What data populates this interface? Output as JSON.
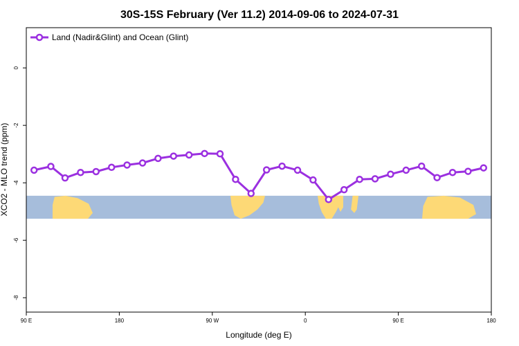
{
  "chart_data": {
    "type": "line",
    "title": "30S-15S February (Ver 11.2)   2014-09-06 to 2024-07-31",
    "xlabel": "Longitude (deg E)",
    "ylabel": "XCO2 - MLO trend (ppm)",
    "xlim": [
      90,
      450
    ],
    "ylim": [
      -8.5,
      1.4
    ],
    "x_ticks": [
      {
        "value": 90,
        "label": "90 E"
      },
      {
        "value": 162,
        "label": "180"
      },
      {
        "value": 234,
        "label": "90 W"
      },
      {
        "value": 306,
        "label": "0"
      },
      {
        "value": 378,
        "label": "90 E"
      },
      {
        "value": 450,
        "label": "180"
      }
    ],
    "y_ticks": [
      {
        "value": 0,
        "label": "0"
      },
      {
        "value": -2,
        "label": "-2"
      },
      {
        "value": -4,
        "label": "-4"
      },
      {
        "value": -6,
        "label": "-6"
      },
      {
        "value": -8,
        "label": "-8"
      }
    ],
    "legend": {
      "position": "top-left"
    },
    "land_band": {
      "y_top": -4.45,
      "y_bottom": -5.25,
      "ocean_color": "#a6bddb",
      "land_color": "#fdd976"
    },
    "series": [
      {
        "name": "Land (Nadir&Glint) and Ocean (Glint)",
        "color": "#9b30e0",
        "x": [
          96,
          109,
          120,
          132,
          144,
          156,
          168,
          180,
          192,
          204,
          216,
          228,
          240,
          252,
          264,
          276,
          288,
          300,
          312,
          324,
          336,
          348,
          360,
          372,
          384,
          396,
          408,
          420,
          432,
          444
        ],
        "y": [
          -3.56,
          -3.43,
          -3.83,
          -3.64,
          -3.61,
          -3.46,
          -3.38,
          -3.31,
          -3.15,
          -3.07,
          -3.03,
          -2.98,
          -2.99,
          -3.88,
          -4.37,
          -3.55,
          -3.42,
          -3.56,
          -3.9,
          -4.58,
          -4.24,
          -3.88,
          -3.86,
          -3.7,
          -3.56,
          -3.42,
          -3.82,
          -3.64,
          -3.6,
          -3.48
        ]
      }
    ]
  }
}
